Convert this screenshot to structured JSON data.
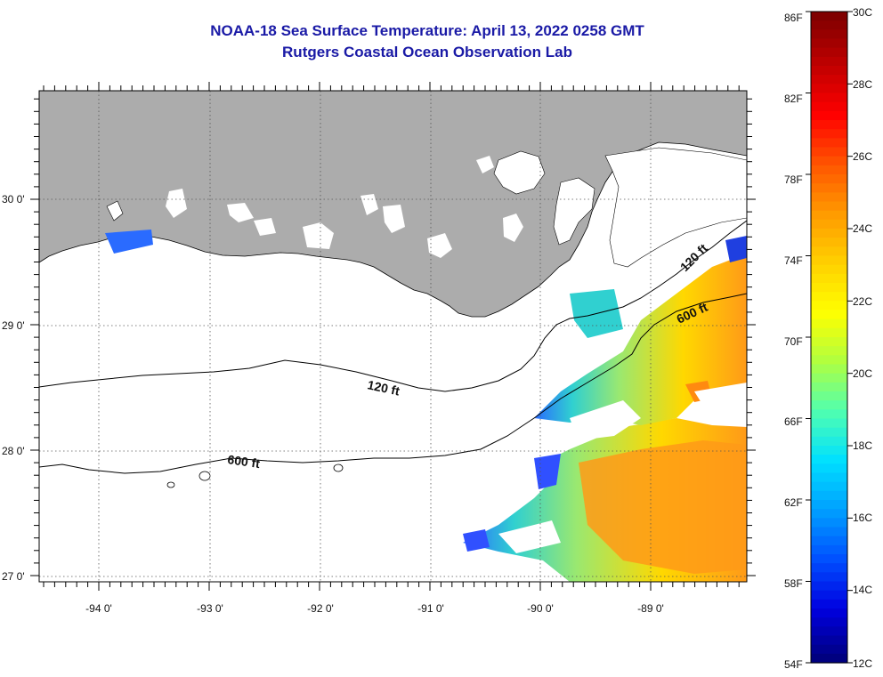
{
  "title": "NOAA-18 Sea Surface Temperature:  April 13, 2022 0258 GMT",
  "subtitle": "Rutgers Coastal Ocean Observation Lab",
  "map": {
    "lon_labels": [
      "-94 0'",
      "-93 0'",
      "-92 0'",
      "-91 0'",
      "-90 0'",
      "-89 0'"
    ],
    "lat_labels": [
      "30 0'",
      "29 0'",
      "28 0'",
      "27 0'"
    ],
    "isobath_labels": [
      "120 ft",
      "120 ft",
      "600 ft",
      "600 ft"
    ],
    "land_color": "#acacac",
    "grid": "dotted"
  },
  "colorbar": {
    "fahrenheit_labels": [
      "86F",
      "82F",
      "78F",
      "74F",
      "70F",
      "66F",
      "62F",
      "58F",
      "54F"
    ],
    "celsius_labels": [
      "30C",
      "28C",
      "26C",
      "24C",
      "22C",
      "20C",
      "18C",
      "16C",
      "14C",
      "12C"
    ],
    "colors_top_to_bottom": [
      "#800000",
      "#c00000",
      "#ff0000",
      "#ff5500",
      "#ff9a00",
      "#ffd000",
      "#ffff00",
      "#b0ff40",
      "#50ffb0",
      "#00e0ff",
      "#00a0ff",
      "#0050ff",
      "#0000e0",
      "#000080"
    ]
  }
}
